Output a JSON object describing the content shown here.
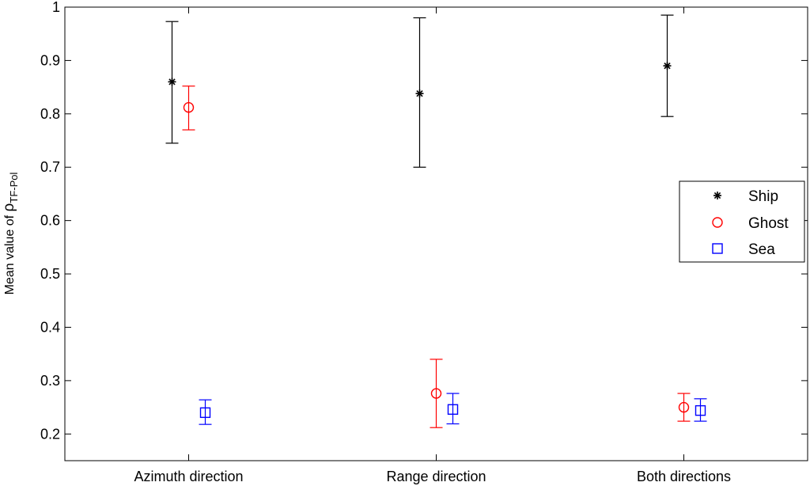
{
  "chart_data": {
    "type": "scatter",
    "categories": [
      "Azimuth direction",
      "Range direction",
      "Both directions"
    ],
    "ylabel": {
      "prefix": "Mean value of ",
      "symbol": "ρ",
      "subscript": "TF-Pol"
    },
    "ylim": [
      0.15,
      1.0
    ],
    "yticks": [
      0.2,
      0.3,
      0.4,
      0.5,
      0.6,
      0.7,
      0.8,
      0.9,
      1
    ],
    "ytick_labels": [
      "0.2",
      "0.3",
      "0.4",
      "0.5",
      "0.6",
      "0.7",
      "0.8",
      "0.9",
      "1"
    ],
    "grid": false,
    "legend_position": "right",
    "series": [
      {
        "name": "Ship",
        "color": "#000000",
        "marker": "asterisk",
        "values": [
          0.86,
          0.838,
          0.89
        ],
        "lower": [
          0.745,
          0.7,
          0.795
        ],
        "upper": [
          0.973,
          0.98,
          0.985
        ]
      },
      {
        "name": "Ghost",
        "color": "#ff0000",
        "marker": "circle",
        "values": [
          0.812,
          0.276,
          0.25
        ],
        "lower": [
          0.77,
          0.212,
          0.224
        ],
        "upper": [
          0.852,
          0.34,
          0.276
        ]
      },
      {
        "name": "Sea",
        "color": "#0000ff",
        "marker": "square",
        "values": [
          0.24,
          0.246,
          0.244
        ],
        "lower": [
          0.218,
          0.219,
          0.224
        ],
        "upper": [
          0.264,
          0.276,
          0.266
        ]
      }
    ]
  }
}
